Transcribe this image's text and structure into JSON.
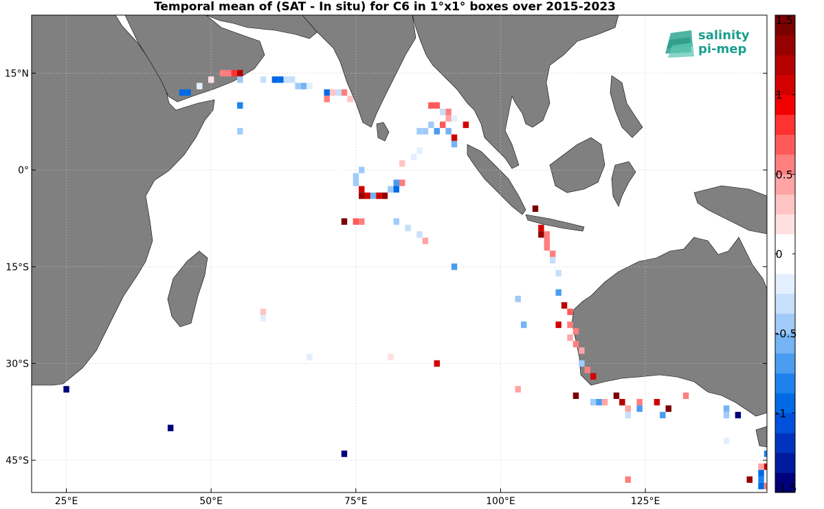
{
  "title": "Temporal mean of (SAT - In situ) for C6 in 1°x1° boxes over 2015-2023",
  "logo": {
    "line1": "salinity",
    "line2": "pi-mep",
    "color": "#1a9e8e"
  },
  "axes": {
    "lon_range": [
      19,
      146
    ],
    "lat_range": [
      -50,
      24
    ],
    "x_ticks": [
      {
        "lon": 25,
        "label": "25°E"
      },
      {
        "lon": 50,
        "label": "50°E"
      },
      {
        "lon": 75,
        "label": "75°E"
      },
      {
        "lon": 100,
        "label": "100°E"
      },
      {
        "lon": 125,
        "label": "125°E"
      }
    ],
    "y_ticks": [
      {
        "lat": 15,
        "label": "15°N"
      },
      {
        "lat": 0,
        "label": "0°"
      },
      {
        "lat": -15,
        "label": "15°S"
      },
      {
        "lat": -30,
        "label": "30°S"
      },
      {
        "lat": -45,
        "label": "45°S"
      }
    ],
    "grid": true,
    "land_color": "#808080"
  },
  "colorbar": {
    "min": -1.5,
    "max": 1.5,
    "ticks": [
      {
        "value": 1.5,
        "label": "1.5"
      },
      {
        "value": 1,
        "label": "1"
      },
      {
        "value": 0.5,
        "label": "0.5"
      },
      {
        "value": 0,
        "label": "0"
      },
      {
        "value": -0.5,
        "label": "-0.5"
      },
      {
        "value": -1,
        "label": "-1"
      },
      {
        "value": -1.5,
        "label": "-1.5"
      }
    ],
    "colors": [
      "#00007a",
      "#001b9e",
      "#0034bf",
      "#0050dc",
      "#006ae6",
      "#1f82ec",
      "#4a9cf0",
      "#74b3f4",
      "#a0cbf8",
      "#c6dffb",
      "#e3efff",
      "#ffffff",
      "#ffffff",
      "#ffe0e0",
      "#ffc4c4",
      "#ffa4a4",
      "#ff7e7e",
      "#ff5a5a",
      "#ff3232",
      "#f00000",
      "#d20000",
      "#b40000",
      "#960000",
      "#7a0000"
    ]
  },
  "chart_data": {
    "type": "heatmap",
    "units": "1x1 degree boxes",
    "cells": [
      [
        52,
        15,
        0.6
      ],
      [
        53,
        15,
        0.6
      ],
      [
        54,
        15,
        0.8
      ],
      [
        55,
        15,
        1.2
      ],
      [
        50,
        14,
        0.2
      ],
      [
        55,
        14,
        -0.5
      ],
      [
        59,
        14,
        -0.3
      ],
      [
        61,
        14,
        -0.9
      ],
      [
        62,
        14,
        -0.9
      ],
      [
        63,
        14,
        -0.3
      ],
      [
        64,
        14,
        -0.3
      ],
      [
        65,
        13,
        -0.4
      ],
      [
        66,
        13,
        -0.6
      ],
      [
        67,
        13,
        -0.2
      ],
      [
        46,
        12,
        -0.9
      ],
      [
        45,
        12,
        -1.0
      ],
      [
        48,
        13,
        -0.2
      ],
      [
        70,
        12,
        -1.0
      ],
      [
        71,
        12,
        0.3
      ],
      [
        72,
        12,
        -0.3
      ],
      [
        73,
        12,
        0.5
      ],
      [
        74,
        11,
        0.3
      ],
      [
        70,
        11,
        0.5
      ],
      [
        55,
        10,
        -0.8
      ],
      [
        55,
        6,
        -0.5
      ],
      [
        88,
        10,
        0.7
      ],
      [
        89,
        10,
        0.7
      ],
      [
        90,
        9,
        -0.3
      ],
      [
        91,
        9,
        0.5
      ],
      [
        91,
        8,
        0.4
      ],
      [
        92,
        8,
        -0.2
      ],
      [
        88,
        7,
        -0.5
      ],
      [
        90,
        7,
        0.7
      ],
      [
        91,
        6,
        -0.6
      ],
      [
        86,
        6,
        -0.5
      ],
      [
        87,
        6,
        -0.5
      ],
      [
        89,
        6,
        -0.7
      ],
      [
        92,
        5,
        1.0
      ],
      [
        92,
        4,
        -0.6
      ],
      [
        94,
        7,
        1.0
      ],
      [
        87,
        3,
        -0.1
      ],
      [
        86,
        3,
        -0.2
      ],
      [
        85,
        2,
        -0.2
      ],
      [
        83,
        1,
        0.3
      ],
      [
        72,
        0,
        0.1
      ],
      [
        76,
        0,
        -0.4
      ],
      [
        75,
        -1,
        -0.4
      ],
      [
        75,
        -2,
        -0.4
      ],
      [
        76,
        -3,
        1.0
      ],
      [
        76,
        -4,
        1.3
      ],
      [
        77,
        -4,
        1.0
      ],
      [
        78,
        -4,
        -0.6
      ],
      [
        79,
        -4,
        1.0
      ],
      [
        80,
        -4,
        1.3
      ],
      [
        81,
        -3,
        -0.4
      ],
      [
        82,
        -3,
        -1.0
      ],
      [
        82,
        -2,
        -0.7
      ],
      [
        83,
        -2,
        0.5
      ],
      [
        73,
        -8,
        1.4
      ],
      [
        75,
        -8,
        0.7
      ],
      [
        76,
        -8,
        0.5
      ],
      [
        82,
        -8,
        -0.4
      ],
      [
        84,
        -9,
        -0.3
      ],
      [
        86,
        -10,
        -0.3
      ],
      [
        87,
        -11,
        0.4
      ],
      [
        92,
        -15,
        -0.7
      ],
      [
        106,
        -6,
        1.5
      ],
      [
        107,
        -9,
        1.1
      ],
      [
        107,
        -10,
        1.3
      ],
      [
        108,
        -10,
        0.6
      ],
      [
        108,
        -11,
        0.5
      ],
      [
        108,
        -12,
        0.5
      ],
      [
        109,
        -13,
        0.6
      ],
      [
        109,
        -14,
        -0.3
      ],
      [
        110,
        -16,
        -0.3
      ],
      [
        110,
        -19,
        -0.7
      ],
      [
        111,
        -21,
        1.2
      ],
      [
        112,
        -22,
        0.7
      ],
      [
        110,
        -24,
        1.0
      ],
      [
        112,
        -24,
        0.5
      ],
      [
        113,
        -25,
        0.5
      ],
      [
        112,
        -26,
        0.4
      ],
      [
        113,
        -27,
        0.6
      ],
      [
        114,
        -28,
        0.4
      ],
      [
        114,
        -30,
        -0.5
      ],
      [
        115,
        -31,
        0.6
      ],
      [
        116,
        -32,
        1.0
      ],
      [
        113,
        -35,
        1.4
      ],
      [
        116,
        -36,
        -0.5
      ],
      [
        117,
        -36,
        -0.7
      ],
      [
        118,
        -36,
        0.4
      ],
      [
        120,
        -35,
        1.5
      ],
      [
        121,
        -36,
        1.2
      ],
      [
        122,
        -37,
        0.4
      ],
      [
        122,
        -38,
        -0.3
      ],
      [
        124,
        -36,
        0.6
      ],
      [
        124,
        -37,
        -0.7
      ],
      [
        127,
        -36,
        1.0
      ],
      [
        128,
        -38,
        -0.7
      ],
      [
        129,
        -37,
        1.5
      ],
      [
        132,
        -35,
        0.6
      ],
      [
        139,
        -37,
        -0.6
      ],
      [
        139,
        -38,
        -0.4
      ],
      [
        141,
        -38,
        -1.5
      ],
      [
        139,
        -42,
        -0.2
      ],
      [
        103,
        -20,
        -0.4
      ],
      [
        104,
        -24,
        -0.6
      ],
      [
        103,
        -34,
        0.4
      ],
      [
        59,
        -22,
        0.3
      ],
      [
        59,
        -23,
        -0.2
      ],
      [
        67,
        -29,
        -0.2
      ],
      [
        81,
        -29,
        0.2
      ],
      [
        89,
        -30,
        1.0
      ],
      [
        43,
        -40,
        -1.4
      ],
      [
        73,
        -44,
        -1.5
      ],
      [
        25,
        -34,
        -1.5
      ],
      [
        122,
        -48,
        0.5
      ],
      [
        143,
        -48,
        1.3
      ],
      [
        145,
        -46,
        0.4
      ],
      [
        146,
        -46,
        1.0
      ],
      [
        145,
        -47,
        -1.0
      ],
      [
        145,
        -48,
        -0.8
      ],
      [
        145,
        -49,
        -0.9
      ],
      [
        146,
        -49,
        0.5
      ],
      [
        146,
        -44,
        -0.8
      ]
    ]
  }
}
